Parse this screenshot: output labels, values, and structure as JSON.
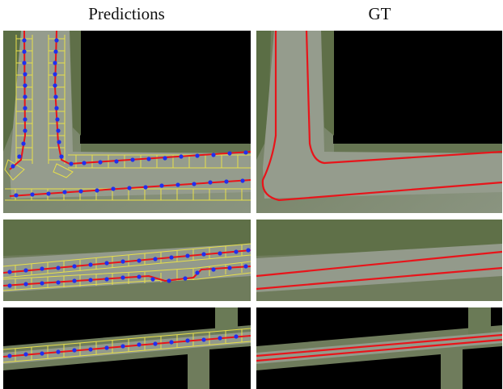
{
  "columns": {
    "left": "Predictions",
    "right": "GT"
  },
  "colors": {
    "background": "#000000",
    "terrain": "#7f8c6e",
    "road": "#8f9688",
    "vegetation": "#5b6e45",
    "lane_line": "#e8141a",
    "keypoint": "#1f2ff0",
    "bounding_box": "#e8e04a"
  }
}
